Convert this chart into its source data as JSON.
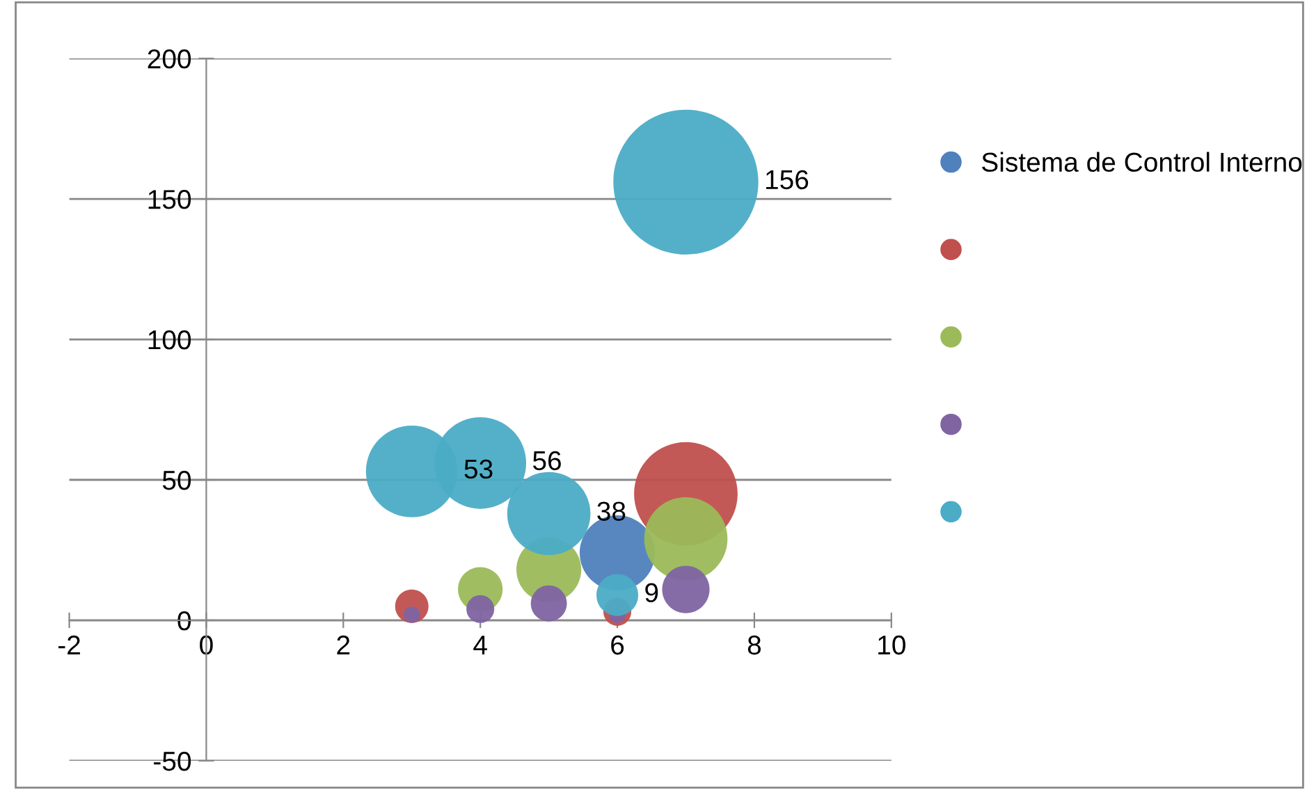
{
  "chart_data": {
    "type": "bubble",
    "xlim": [
      -2,
      10
    ],
    "xticks": [
      -2,
      0,
      2,
      4,
      6,
      8,
      10
    ],
    "ylim": [
      -50,
      200
    ],
    "yticks": [
      -50,
      0,
      50,
      100,
      150,
      200
    ],
    "grid": "y",
    "legend": "right",
    "series": [
      {
        "name": "Sistema de Control Interno",
        "color": "#4f81bd",
        "x": [
          6
        ],
        "values": [
          24
        ],
        "sizes": [
          0.27
        ]
      },
      {
        "color": "#c0504d",
        "x": [
          3,
          6,
          7
        ],
        "values": [
          5,
          3,
          45
        ],
        "sizes": [
          0.053,
          0.037,
          0.51
        ]
      },
      {
        "color": "#9bbb59",
        "x": [
          4,
          5,
          7
        ],
        "values": [
          11,
          18,
          29
        ],
        "sizes": [
          0.095,
          0.2,
          0.33
        ]
      },
      {
        "color": "#8064a2",
        "x": [
          3,
          4,
          5,
          6,
          7
        ],
        "values": [
          2,
          4,
          6,
          2,
          11
        ],
        "sizes": [
          0.013,
          0.037,
          0.062,
          0.013,
          0.107
        ]
      },
      {
        "color": "#4bacc6",
        "x": [
          3,
          4,
          5,
          6,
          7
        ],
        "values": [
          53,
          56,
          38,
          9,
          156
        ],
        "sizes": [
          0.4,
          0.4,
          0.33,
          0.083,
          1
        ],
        "value_labels": [
          "53",
          "56",
          "38",
          "9",
          "156"
        ]
      }
    ]
  }
}
